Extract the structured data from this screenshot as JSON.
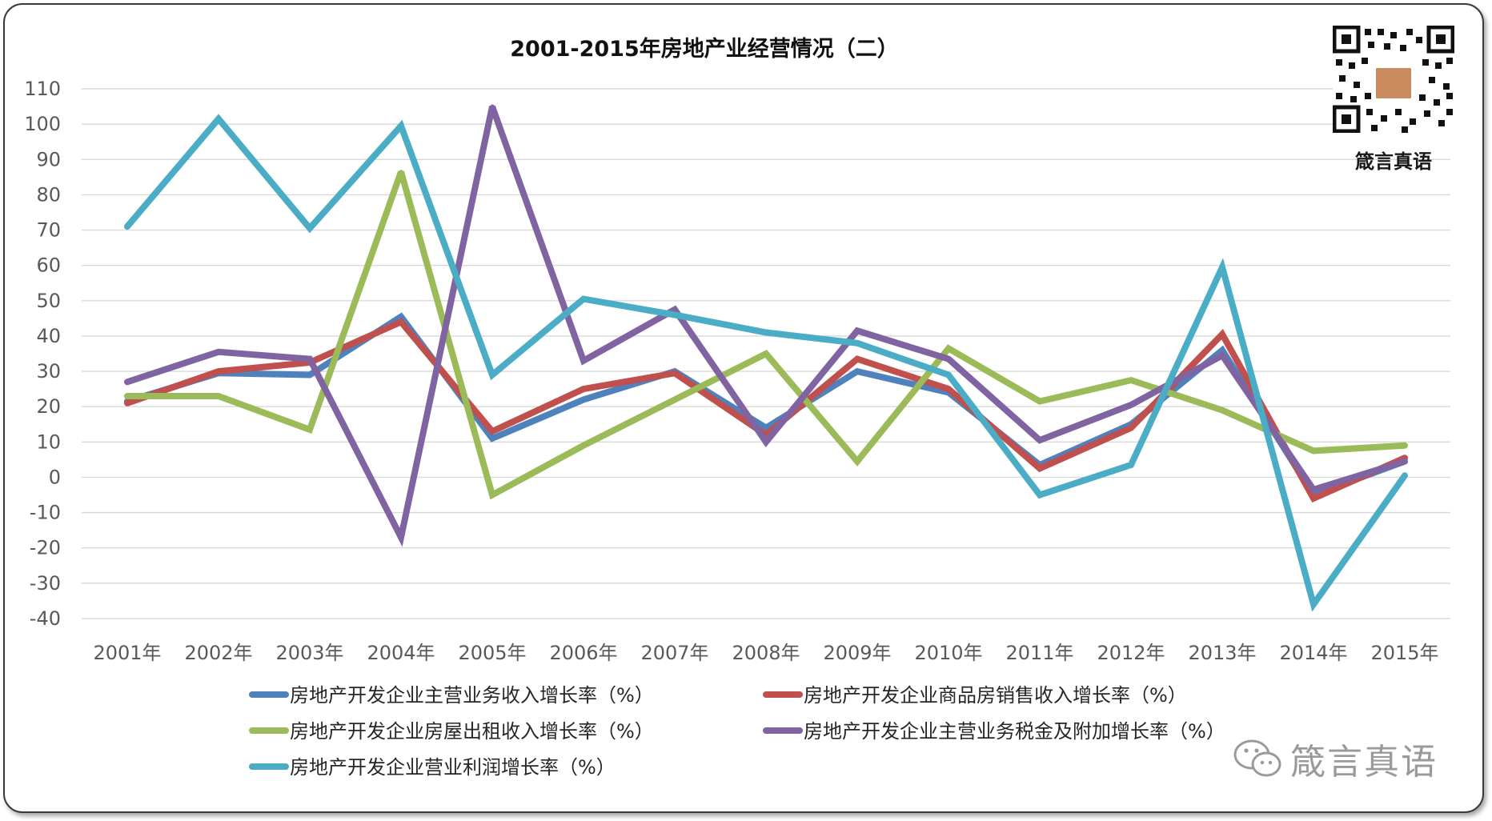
{
  "brand": {
    "caption": "箴言真语",
    "watermark": "箴言真语"
  },
  "colors": {
    "grid": "#d9d9d9",
    "axis_text": "#595959",
    "title": "#111111"
  },
  "chart_data": {
    "type": "line",
    "title": "2001-2015年房地产业经营情况（二）",
    "xlabel": "",
    "ylabel": "",
    "ylim": [
      -40,
      110
    ],
    "yticks": [
      110,
      100,
      90,
      80,
      70,
      60,
      50,
      40,
      30,
      20,
      10,
      0,
      -10,
      -20,
      -30,
      -40
    ],
    "grid": true,
    "legend_position": "bottom",
    "categories": [
      "2001年",
      "2002年",
      "2003年",
      "2004年",
      "2005年",
      "2006年",
      "2007年",
      "2008年",
      "2009年",
      "2010年",
      "2011年",
      "2012年",
      "2013年",
      "2014年",
      "2015年"
    ],
    "series": [
      {
        "name": "房地产开发企业主营业务收入增长率（%）",
        "color": "#4f81bd",
        "values": [
          21.5,
          29.5,
          29.0,
          45.5,
          11.0,
          22.0,
          30.0,
          14.0,
          30.0,
          24.0,
          3.5,
          15.0,
          36.0,
          -5.0,
          4.5
        ]
      },
      {
        "name": "房地产开发企业商品房销售收入增长率（%）",
        "color": "#c0504d",
        "values": [
          21.0,
          30.0,
          32.5,
          44.0,
          13.0,
          25.0,
          29.5,
          12.0,
          33.5,
          25.0,
          2.5,
          14.0,
          40.5,
          -6.0,
          5.5
        ]
      },
      {
        "name": "房地产开发企业房屋出租收入增长率（%）",
        "color": "#9bbb59",
        "values": [
          23.0,
          23.0,
          13.5,
          86.5,
          -5.0,
          9.0,
          22.0,
          35.0,
          4.5,
          36.5,
          21.5,
          27.5,
          19.0,
          7.5,
          9.0
        ]
      },
      {
        "name": "房地产开发企业主营业务税金及附加增长率（%）",
        "color": "#8064a2",
        "values": [
          27.0,
          35.5,
          33.5,
          -17.0,
          105.0,
          33.0,
          47.5,
          10.0,
          41.5,
          33.5,
          10.5,
          20.5,
          34.5,
          -3.5,
          4.5
        ]
      },
      {
        "name": "房地产开发企业营业利润增长率（%）",
        "color": "#4bacc6",
        "values": [
          71.0,
          101.5,
          70.5,
          99.5,
          29.0,
          50.5,
          46.0,
          41.0,
          38.0,
          29.0,
          -5.0,
          3.5,
          59.5,
          -36.0,
          0.5
        ]
      }
    ]
  }
}
